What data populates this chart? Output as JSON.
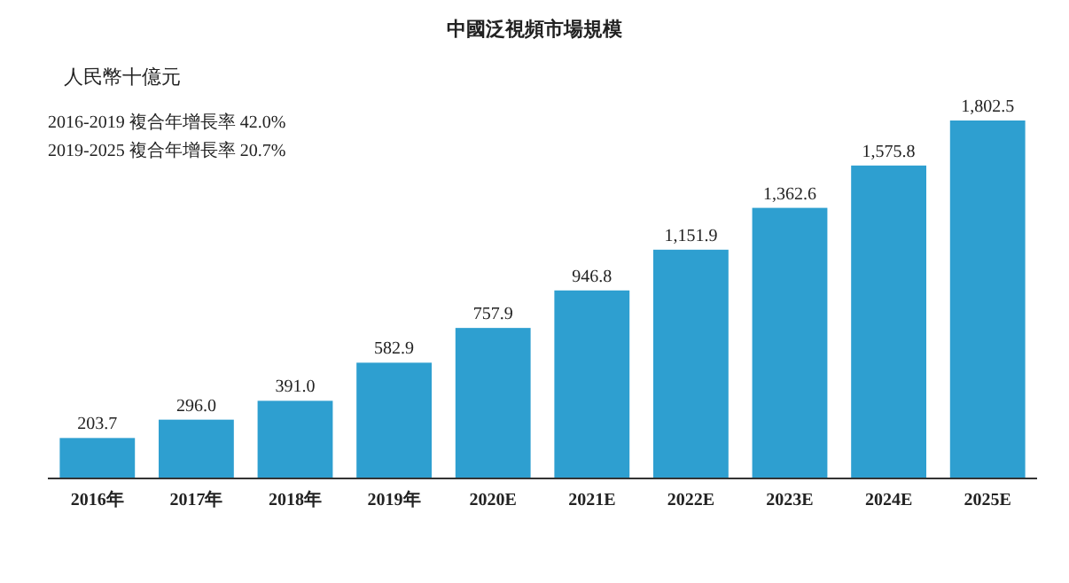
{
  "chart_data": {
    "type": "bar",
    "title": "中國泛視頻市場規模",
    "ylabel": "人民幣十億元",
    "annotations": [
      "2016-2019 複合年增長率 42.0%",
      "2019-2025 複合年增長率 20.7%"
    ],
    "categories": [
      "2016年",
      "2017年",
      "2018年",
      "2019年",
      "2020E",
      "2021E",
      "2022E",
      "2023E",
      "2024E",
      "2025E"
    ],
    "values": [
      203.7,
      296.0,
      391.0,
      582.9,
      757.9,
      946.8,
      1151.9,
      1362.6,
      1575.8,
      1802.5
    ],
    "value_labels": [
      "203.7",
      "296.0",
      "391.0",
      "582.9",
      "757.9",
      "946.8",
      "1,151.9",
      "1,362.6",
      "1,575.8",
      "1,802.5"
    ],
    "color": "#2e9fd0"
  }
}
